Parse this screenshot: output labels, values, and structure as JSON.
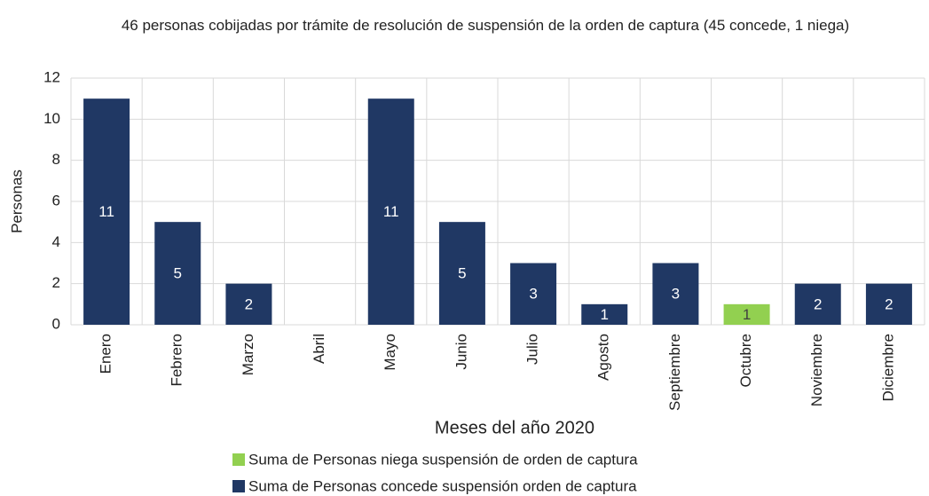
{
  "chart_data": {
    "type": "bar",
    "stacked": true,
    "title": "46 personas cobijadas por trámite de resolución de suspensión de la orden de captura (45 concede, 1 niega)",
    "xlabel": "Meses del año 2020",
    "ylabel": "Personas",
    "categories": [
      "Enero",
      "Febrero",
      "Marzo",
      "Abril",
      "Mayo",
      "Junio",
      "Julio",
      "Agosto",
      "Septiembre",
      "Octubre",
      "Noviembre",
      "Diciembre"
    ],
    "series": [
      {
        "name": "Suma de Personas niega suspensión de orden de captura",
        "color": "#92d050",
        "values": [
          null,
          null,
          null,
          null,
          null,
          null,
          null,
          null,
          null,
          1,
          null,
          null
        ]
      },
      {
        "name": "Suma de Personas concede suspensión orden de captura",
        "color": "#203864",
        "values": [
          11,
          5,
          2,
          null,
          11,
          5,
          3,
          1,
          3,
          null,
          2,
          2
        ]
      }
    ],
    "ylim": [
      0,
      12
    ],
    "yticks": [
      0,
      2,
      4,
      6,
      8,
      10,
      12
    ],
    "grid": true,
    "legend": "bottom"
  }
}
